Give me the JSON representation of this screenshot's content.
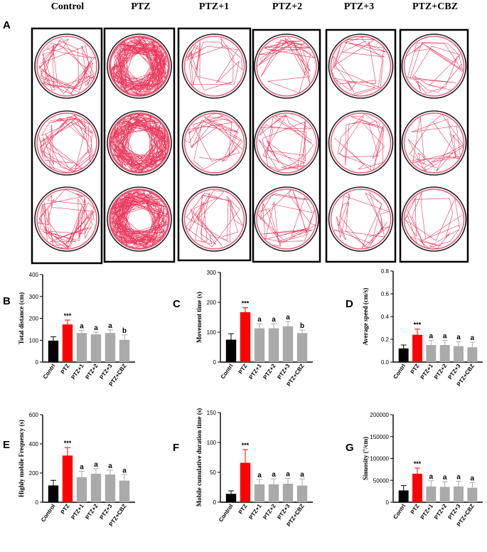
{
  "panel_a": {
    "letter": "A",
    "groups": [
      "Control",
      "PTZ",
      "PTZ+1",
      "PTZ+2",
      "PTZ+3",
      "PTZ+CBZ"
    ]
  },
  "colors": {
    "control": "#000000",
    "ptz": "#ff0000",
    "treatment": "#aaaaaa",
    "track": "#e8224a"
  },
  "chart_data": [
    {
      "letter": "B",
      "type": "bar",
      "ylabel": "Total distance (cm)",
      "ylim": [
        0,
        400
      ],
      "yticks": [
        0,
        100,
        200,
        300,
        400
      ],
      "categories": [
        "Contrl",
        "PTZ",
        "PTZ+1",
        "PTZ+2",
        "PTZ+3",
        "PTZ+CBZ"
      ],
      "values": [
        98,
        172,
        133,
        127,
        133,
        102
      ],
      "errors": [
        18,
        20,
        12,
        10,
        14,
        22
      ],
      "annotations": [
        "",
        "***",
        "a",
        "a",
        "a",
        "b"
      ]
    },
    {
      "letter": "C",
      "type": "bar",
      "ylabel": "Movement time (s)",
      "ylim": [
        0,
        300
      ],
      "yticks": [
        0,
        100,
        200,
        300
      ],
      "categories": [
        "Contrl",
        "PTZ",
        "PTZ+1",
        "PTZ+2",
        "PTZ+3",
        "PTZ+CBZ"
      ],
      "values": [
        75,
        167,
        113,
        113,
        120,
        97
      ],
      "errors": [
        20,
        15,
        15,
        15,
        16,
        10
      ],
      "annotations": [
        "",
        "***",
        "a",
        "a",
        "a",
        "b"
      ]
    },
    {
      "letter": "D",
      "type": "bar",
      "ylabel": "Average speed (cm/s)",
      "ylim": [
        0,
        0.8
      ],
      "yticks": [
        0.0,
        0.2,
        0.4,
        0.6,
        0.8
      ],
      "categories": [
        "Contrl",
        "PTZ",
        "PTZ+1",
        "PTZ+2",
        "PTZ+3",
        "PTZ+CBZ"
      ],
      "values": [
        0.12,
        0.24,
        0.15,
        0.15,
        0.14,
        0.13
      ],
      "errors": [
        0.03,
        0.05,
        0.04,
        0.04,
        0.04,
        0.045
      ],
      "annotations": [
        "",
        "***",
        "a",
        "a",
        "a",
        "a"
      ]
    },
    {
      "letter": "E",
      "type": "bar",
      "ylabel": "Highly mobile Frequency (s)",
      "ylim": [
        0,
        600
      ],
      "yticks": [
        0,
        200,
        400,
        600
      ],
      "categories": [
        "Control",
        "PTZ",
        "PTZ+1",
        "PTZ+2",
        "PTZ+3",
        "PTZ+CBZ"
      ],
      "values": [
        115,
        320,
        172,
        195,
        190,
        148
      ],
      "errors": [
        35,
        55,
        40,
        35,
        30,
        40
      ],
      "annotations": [
        "",
        "***",
        "a",
        "a",
        "a",
        "a"
      ]
    },
    {
      "letter": "F",
      "type": "bar",
      "ylabel": "Mobile cumulative duration time (s)",
      "ylim": [
        0,
        150
      ],
      "yticks": [
        0,
        50,
        100,
        150
      ],
      "categories": [
        "Control",
        "PTZ",
        "PTZ+1",
        "PTZ+2",
        "PTZ+3",
        "PTZ+CBZ"
      ],
      "values": [
        14,
        66,
        30,
        30,
        31,
        28
      ],
      "errors": [
        5,
        22,
        8,
        9,
        9,
        11
      ],
      "annotations": [
        "",
        "***",
        "a",
        "a",
        "a",
        "a"
      ]
    },
    {
      "letter": "G",
      "type": "bar",
      "ylabel": "Sinuosity (°/cm)",
      "ylim": [
        0,
        200000
      ],
      "yticks": [
        0,
        50000,
        100000,
        150000,
        200000
      ],
      "categories": [
        "Contrl",
        "PTZ",
        "PTZ+1",
        "PTZ+2",
        "PTZ+3",
        "PTZ+CBZ"
      ],
      "values": [
        27000,
        65000,
        36000,
        35000,
        36000,
        33000
      ],
      "errors": [
        11000,
        13000,
        13000,
        12000,
        12000,
        12000
      ],
      "annotations": [
        "",
        "***",
        "a",
        "a",
        "a",
        "a"
      ]
    }
  ]
}
